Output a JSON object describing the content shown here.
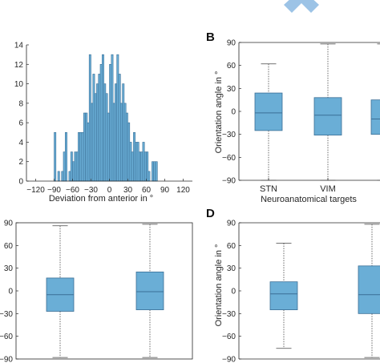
{
  "colors": {
    "bar_fill": "#6aaed6",
    "bar_edge": "#3b6f96",
    "median": "#3b6f96",
    "axis": "#262626"
  },
  "decor": {
    "top_logo_icon": "chevron-up-icon"
  },
  "chart_data": [
    {
      "id": "hist",
      "type": "bar",
      "panel": "",
      "title": "",
      "xlabel": "Deviation from anterior in °",
      "ylabel": "",
      "xlim": [
        -135,
        135
      ],
      "ylim": [
        0,
        14
      ],
      "xticks": [
        -120,
        -90,
        -60,
        -30,
        0,
        30,
        60,
        90,
        120
      ],
      "yticks": [
        0,
        2,
        4,
        6,
        8,
        10,
        12,
        14
      ],
      "bin_width": 3,
      "bin_centers": [
        -88.5,
        -82.5,
        -76.5,
        -73.5,
        -70.5,
        -64.5,
        -61.5,
        -58.5,
        -55.5,
        -52.5,
        -49.5,
        -46.5,
        -43.5,
        -40.5,
        -37.5,
        -34.5,
        -31.5,
        -28.5,
        -25.5,
        -22.5,
        -19.5,
        -16.5,
        -13.5,
        -10.5,
        -7.5,
        -4.5,
        -1.5,
        1.5,
        4.5,
        7.5,
        10.5,
        13.5,
        16.5,
        19.5,
        22.5,
        25.5,
        28.5,
        31.5,
        34.5,
        37.5,
        40.5,
        43.5,
        46.5,
        49.5,
        52.5,
        55.5,
        58.5,
        61.5,
        64.5,
        70.5,
        73.5,
        76.5
      ],
      "values": [
        5,
        1,
        1,
        3,
        5,
        1,
        3,
        2,
        3,
        3,
        5,
        5,
        5,
        7,
        7,
        6,
        13,
        8,
        11,
        9,
        10,
        11,
        12,
        13,
        10,
        9,
        7,
        12,
        13,
        8,
        10,
        13,
        11,
        8,
        10,
        8,
        7,
        6,
        4,
        3,
        5,
        4,
        4,
        3,
        3,
        4,
        3,
        3,
        1,
        2,
        2,
        2
      ]
    },
    {
      "id": "B",
      "type": "box",
      "panel": "B",
      "ylabel": "Orientation angle in °",
      "xlabel": "Neuroanatomical targets",
      "ylim": [
        -90,
        90
      ],
      "yticks": [
        -90,
        -60,
        -30,
        0,
        30,
        60,
        90
      ],
      "categories": [
        "STN",
        "VIM",
        ""
      ],
      "boxes": [
        {
          "whislo": -90,
          "q1": -25,
          "med": -2,
          "q3": 24,
          "whishi": 62
        },
        {
          "whislo": -90,
          "q1": -31,
          "med": -5,
          "q3": 18,
          "whishi": 88
        },
        {
          "whislo": -90,
          "q1": -30,
          "med": -10,
          "q3": 15,
          "whishi": 88
        }
      ]
    },
    {
      "id": "C",
      "type": "box",
      "panel": "",
      "ylabel": "",
      "xlabel": "",
      "ylim": [
        -90,
        90
      ],
      "yticks": [
        -90,
        -60,
        -30,
        0,
        30,
        60,
        90
      ],
      "categories": [
        "",
        ""
      ],
      "boxes": [
        {
          "whislo": -88,
          "q1": -27,
          "med": -5,
          "q3": 17,
          "whishi": 86
        },
        {
          "whislo": -88,
          "q1": -25,
          "med": -1,
          "q3": 25,
          "whishi": 88
        }
      ]
    },
    {
      "id": "D",
      "type": "box",
      "panel": "D",
      "ylabel": "Orientation angle in °",
      "xlabel": "",
      "ylim": [
        -90,
        90
      ],
      "yticks": [
        -90,
        -60,
        -30,
        0,
        30,
        60,
        90
      ],
      "categories": [
        "",
        ""
      ],
      "boxes": [
        {
          "whislo": -76,
          "q1": -25,
          "med": -4,
          "q3": 12,
          "whishi": 63
        },
        {
          "whislo": -88,
          "q1": -30,
          "med": -5,
          "q3": 33,
          "whishi": 88
        }
      ]
    }
  ]
}
